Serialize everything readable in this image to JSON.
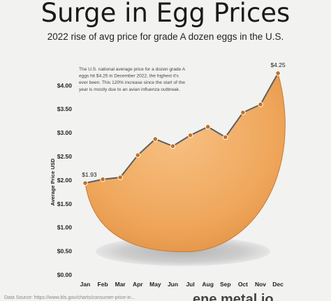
{
  "title": "Surge in Egg Prices",
  "subtitle": "2022 rise of avg price for grade A dozen eggs in the U.S.",
  "annotation": "The U.S. national average price for a dozen grade A eggs hit $4.25 in December 2022, the highest it's ever been. This 120% increase since the start of the year is mostly due to an avian influenza outbreak.",
  "annotation_lines": [
    "The U.S. national average price for a dozen grade A",
    "eggs hit $4.25 in December 2022, the highest it's",
    "ever been. This 120% increase since the start of the",
    "year is mostly due to an avian influenza outbreak."
  ],
  "source": "Data Source: https://www.bls.gov/charts/consumer-price-in...",
  "brand": "ene metal io",
  "colors": {
    "background": "#f2f2f1",
    "egg_fill": "#efa65a",
    "egg_fill_dark": "#d9853a",
    "line": "#5f5f5f",
    "point": "#c56f22",
    "text": "#222222",
    "grid": "#dcdcdc"
  },
  "chart_data": {
    "type": "line",
    "title": "Surge in Egg Prices",
    "subtitle": "2022 rise of avg price for grade A dozen eggs in the U.S.",
    "xlabel": "",
    "ylabel": "Average Price USD",
    "categories": [
      "Jan",
      "Feb",
      "Mar",
      "Apr",
      "May",
      "Jun",
      "Jul",
      "Aug",
      "Sep",
      "Oct",
      "Nov",
      "Dec"
    ],
    "series": [
      {
        "values": [
          1.93,
          2.01,
          2.05,
          2.52,
          2.86,
          2.71,
          2.94,
          3.12,
          2.9,
          3.42,
          3.59,
          4.25
        ]
      }
    ],
    "ylim": [
      0,
      4.25
    ],
    "yticks": [
      0,
      0.5,
      1.0,
      1.5,
      2.0,
      2.5,
      3.0,
      3.5,
      4.0
    ],
    "ytick_labels": [
      "$0.00",
      "$0.50",
      "$1.00",
      "$1.50",
      "$2.00",
      "$2.50",
      "$3.00",
      "$3.50",
      "$4.00"
    ],
    "data_labels": [
      {
        "category": "Jan",
        "text": "$1.93"
      },
      {
        "category": "Dec",
        "text": "$4.25"
      }
    ],
    "grid": false,
    "legend": "none"
  }
}
